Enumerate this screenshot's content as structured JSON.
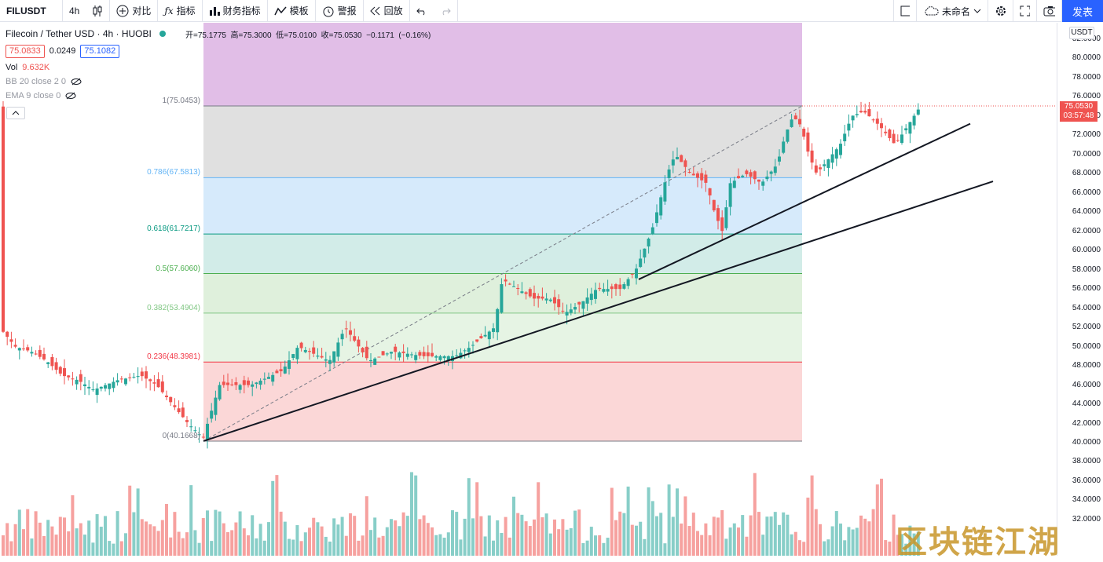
{
  "toolbar": {
    "symbol": "FILUSDT",
    "interval": "4h",
    "compare_label": "对比",
    "indicators_label": "指标",
    "financials_label": "财务指标",
    "templates_label": "模板",
    "alert_label": "警报",
    "replay_label": "回放",
    "layout_name": "未命名",
    "publish_label": "发表"
  },
  "legend": {
    "title": "Filecoin / Tether USD · 4h · HUOBI",
    "ohlc": "开=75.1775  高=75.3000  低=75.0100  收=75.0530  −0.1171  (−0.16%)",
    "bid": "75.0833",
    "spread": "0.0249",
    "ask": "75.1082",
    "vol_label": "Vol",
    "vol_value": "9.632K",
    "bb_label": "BB 20 close 2 0",
    "ema_label": "EMA 9 close 0"
  },
  "price_axis": {
    "currency": "USDT",
    "ticks": [
      "82.0000",
      "80.0000",
      "78.0000",
      "76.0000",
      "74.0000",
      "72.0000",
      "70.0000",
      "68.0000",
      "66.0000",
      "64.0000",
      "62.0000",
      "60.0000",
      "58.0000",
      "56.0000",
      "54.0000",
      "52.0000",
      "50.0000",
      "48.0000",
      "46.0000",
      "44.0000",
      "42.0000",
      "40.0000",
      "38.0000",
      "36.0000",
      "34.0000",
      "32.0000"
    ],
    "last_price": "75.0530",
    "countdown": "03:57:48"
  },
  "fib": {
    "levels": [
      {
        "label": "1(75.0453)",
        "value": 75.0453,
        "color": "#787b86"
      },
      {
        "label": "0.786(67.5813)",
        "value": 67.5813,
        "color": "#64b5f6"
      },
      {
        "label": "0.618(61.7217)",
        "value": 61.7217,
        "color": "#089981"
      },
      {
        "label": "0.5(57.6060)",
        "value": 57.606,
        "color": "#4caf50"
      },
      {
        "label": "0.382(53.4904)",
        "value": 53.4904,
        "color": "#81c784"
      },
      {
        "label": "0.236(48.3981)",
        "value": 48.3981,
        "color": "#f23645"
      },
      {
        "label": "0(40.1668)",
        "value": 40.1668,
        "color": "#787b86"
      }
    ]
  },
  "watermark": "区块链江湖",
  "colors": {
    "up": "#26a69a",
    "down": "#ef5350",
    "accent": "#2962ff"
  }
}
